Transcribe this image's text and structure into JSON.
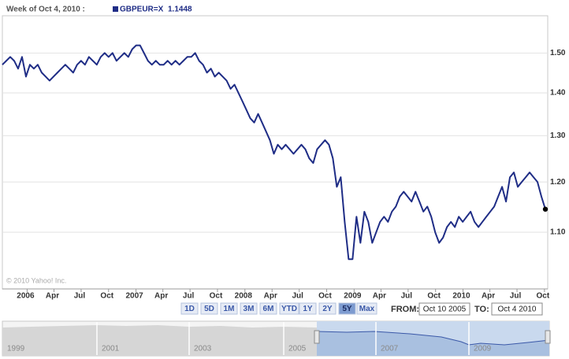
{
  "chart_data": {
    "type": "line",
    "header": "Week of Oct 4, 2010 :",
    "watermark": "© 2010 Yahoo! Inc.",
    "log_scale": true,
    "grid": true,
    "xlim": [
      "2005-10-10",
      "2010-10-04"
    ],
    "xticks": [
      {
        "value": "2006-01",
        "label": "2006"
      },
      {
        "value": "2006-04",
        "label": "Apr"
      },
      {
        "value": "2006-07",
        "label": "Jul"
      },
      {
        "value": "2006-10",
        "label": "Oct"
      },
      {
        "value": "2007-01",
        "label": "2007"
      },
      {
        "value": "2007-04",
        "label": "Apr"
      },
      {
        "value": "2007-07",
        "label": "Jul"
      },
      {
        "value": "2007-10",
        "label": "Oct"
      },
      {
        "value": "2008-01",
        "label": "2008"
      },
      {
        "value": "2008-04",
        "label": "Apr"
      },
      {
        "value": "2008-07",
        "label": "Jul"
      },
      {
        "value": "2008-10",
        "label": "Oct"
      },
      {
        "value": "2009-01",
        "label": "2009"
      },
      {
        "value": "2009-04",
        "label": "Apr"
      },
      {
        "value": "2009-07",
        "label": "Jul"
      },
      {
        "value": "2009-10",
        "label": "Oct"
      },
      {
        "value": "2010-01",
        "label": "2010"
      },
      {
        "value": "2010-04",
        "label": "Apr"
      },
      {
        "value": "2010-07",
        "label": "Jul"
      },
      {
        "value": "2010-10",
        "label": "Oct"
      }
    ],
    "ylim": [
      1.0,
      1.6
    ],
    "yticks": [
      {
        "value": 1.1,
        "label": "1.10"
      },
      {
        "value": 1.2,
        "label": "1.20"
      },
      {
        "value": 1.3,
        "label": "1.30"
      },
      {
        "value": 1.4,
        "label": "1.40"
      },
      {
        "value": 1.5,
        "label": "1.50"
      }
    ],
    "series": [
      {
        "name": "GBPEUR=X",
        "color": "#1f2d86",
        "values": [
          1.47,
          1.48,
          1.49,
          1.48,
          1.46,
          1.49,
          1.44,
          1.47,
          1.46,
          1.47,
          1.45,
          1.44,
          1.43,
          1.44,
          1.45,
          1.46,
          1.47,
          1.46,
          1.45,
          1.47,
          1.48,
          1.47,
          1.49,
          1.48,
          1.47,
          1.49,
          1.5,
          1.49,
          1.5,
          1.48,
          1.49,
          1.5,
          1.49,
          1.51,
          1.52,
          1.52,
          1.5,
          1.48,
          1.47,
          1.48,
          1.47,
          1.47,
          1.48,
          1.47,
          1.48,
          1.47,
          1.48,
          1.49,
          1.49,
          1.5,
          1.48,
          1.47,
          1.45,
          1.46,
          1.44,
          1.45,
          1.44,
          1.43,
          1.41,
          1.42,
          1.4,
          1.38,
          1.36,
          1.34,
          1.33,
          1.35,
          1.33,
          1.31,
          1.29,
          1.26,
          1.28,
          1.27,
          1.28,
          1.27,
          1.26,
          1.27,
          1.28,
          1.27,
          1.25,
          1.24,
          1.27,
          1.28,
          1.29,
          1.28,
          1.25,
          1.19,
          1.21,
          1.12,
          1.05,
          1.05,
          1.13,
          1.08,
          1.14,
          1.12,
          1.08,
          1.1,
          1.12,
          1.13,
          1.12,
          1.14,
          1.15,
          1.17,
          1.18,
          1.17,
          1.16,
          1.18,
          1.16,
          1.14,
          1.15,
          1.13,
          1.1,
          1.08,
          1.09,
          1.11,
          1.12,
          1.11,
          1.13,
          1.12,
          1.13,
          1.14,
          1.12,
          1.11,
          1.12,
          1.13,
          1.14,
          1.15,
          1.17,
          1.19,
          1.16,
          1.21,
          1.22,
          1.19,
          1.2,
          1.21,
          1.22,
          1.21,
          1.2,
          1.17,
          1.1448
        ]
      }
    ]
  },
  "controls": {
    "ranges": [
      "1D",
      "5D",
      "1M",
      "3M",
      "6M",
      "YTD",
      "1Y",
      "2Y",
      "5Y",
      "Max"
    ],
    "selected": "5Y",
    "from_label": "FROM:",
    "from": "Oct 10 2005",
    "to_label": "TO:",
    "to": "Oct 4 2010"
  },
  "navigator": {
    "labels": [
      "1999",
      "2001",
      "2003",
      "2005",
      "2007",
      "2009"
    ]
  }
}
